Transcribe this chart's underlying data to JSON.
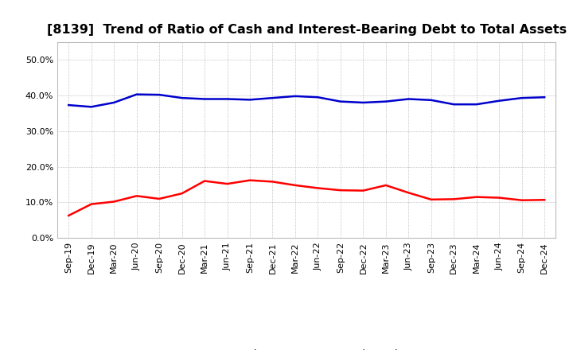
{
  "title": "[8139]  Trend of Ratio of Cash and Interest-Bearing Debt to Total Assets",
  "x_labels": [
    "Sep-19",
    "Dec-19",
    "Mar-20",
    "Jun-20",
    "Sep-20",
    "Dec-20",
    "Mar-21",
    "Jun-21",
    "Sep-21",
    "Dec-21",
    "Mar-22",
    "Jun-22",
    "Sep-22",
    "Dec-22",
    "Mar-23",
    "Jun-23",
    "Sep-23",
    "Dec-23",
    "Mar-24",
    "Jun-24",
    "Sep-24",
    "Dec-24"
  ],
  "cash": [
    0.063,
    0.095,
    0.102,
    0.118,
    0.11,
    0.125,
    0.16,
    0.152,
    0.162,
    0.158,
    0.148,
    0.14,
    0.134,
    0.133,
    0.148,
    0.127,
    0.108,
    0.109,
    0.115,
    0.113,
    0.106,
    0.107
  ],
  "ibd": [
    0.373,
    0.368,
    0.38,
    0.403,
    0.402,
    0.393,
    0.39,
    0.39,
    0.388,
    0.393,
    0.398,
    0.395,
    0.383,
    0.38,
    0.383,
    0.39,
    0.387,
    0.375,
    0.375,
    0.385,
    0.393,
    0.395
  ],
  "cash_color": "#ff0000",
  "ibd_color": "#0000cc",
  "ylim": [
    0.0,
    0.55
  ],
  "yticks": [
    0.0,
    0.1,
    0.2,
    0.3,
    0.4,
    0.5
  ],
  "background_color": "#ffffff",
  "grid_color": "#aaaaaa",
  "title_fontsize": 11.5,
  "tick_fontsize": 8,
  "legend_fontsize": 9,
  "line_width": 1.8
}
